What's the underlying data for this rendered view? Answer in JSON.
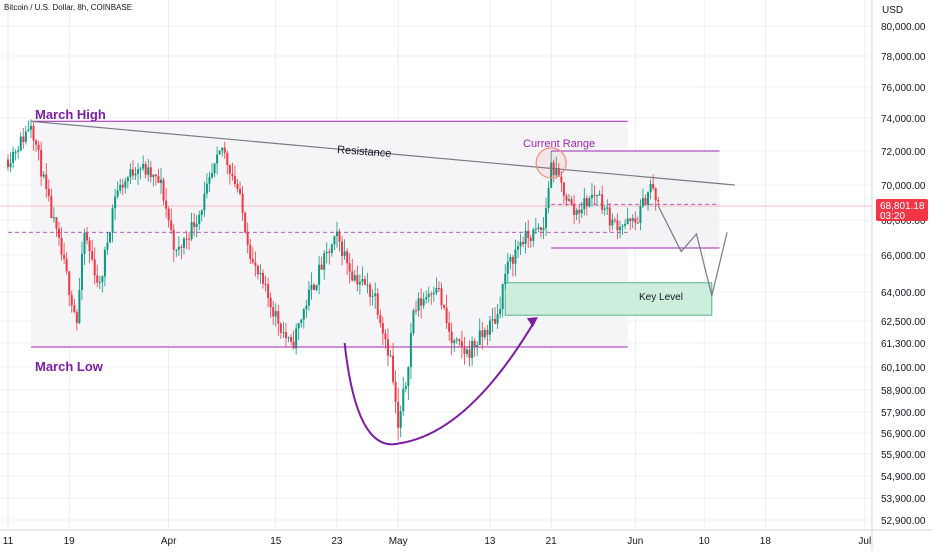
{
  "header": {
    "symbol": "Bitcoin / U.S. Dollar, 8h, COINBASE",
    "currency": "USD"
  },
  "price_badge": {
    "price": "68,801.18",
    "countdown": "03:20",
    "color": "#f23645"
  },
  "colors": {
    "up": "#089981",
    "down": "#f23645",
    "purple": "#9c27b0",
    "dark_purple": "#7b1fa2",
    "grid": "#e0e3eb",
    "resistance": "#787b86",
    "key_level_fill": "#cdeedd",
    "key_level_border": "#57b38a"
  },
  "annotations": {
    "march_high": "March High",
    "march_low": "March Low",
    "resistance": "Resistance",
    "current_range": "Current Range",
    "key_level": "Key Level"
  },
  "chart_data": {
    "type": "candlestick",
    "timeframe": "8h",
    "y_ticks": [
      "80,000.00",
      "78,000.00",
      "76,000.00",
      "74,000.00",
      "72,000.00",
      "70,000.00",
      "68,000.00",
      "66,000.00",
      "64,000.00",
      "62,500.00",
      "61,300.00",
      "60,100.00",
      "58,900.00",
      "57,900.00",
      "56,900.00",
      "55,900.00",
      "54,900.00",
      "53,900.00",
      "52,900.00"
    ],
    "x_ticks": [
      "11",
      "19",
      "Apr",
      "15",
      "23",
      "May",
      "13",
      "21",
      "Jun",
      "10",
      "18",
      "Jul"
    ],
    "levels": {
      "march_high": 73800,
      "march_low": 61100,
      "current_range_high": 72000,
      "current_range_low": 66400,
      "key_level_high": 64500,
      "key_level_low": 62800
    },
    "price_path": [
      [
        "Mar 11",
        71500
      ],
      [
        "Mar 13",
        72800
      ],
      [
        "Mar 14",
        73800
      ],
      [
        "Mar 16",
        69500
      ],
      [
        "Mar 18",
        66000
      ],
      [
        "Mar 20",
        62500
      ],
      [
        "Mar 21",
        67200
      ],
      [
        "Mar 23",
        64200
      ],
      [
        "Mar 25",
        69500
      ],
      [
        "Mar 28",
        71200
      ],
      [
        "Mar 31",
        70000
      ],
      [
        "Apr 2",
        66000
      ],
      [
        "Apr 5",
        68400
      ],
      [
        "Apr 8",
        72200
      ],
      [
        "Apr 10",
        69800
      ],
      [
        "Apr 12",
        65500
      ],
      [
        "Apr 14",
        63700
      ],
      [
        "Apr 17",
        61000
      ],
      [
        "Apr 19",
        63500
      ],
      [
        "Apr 21",
        65400
      ],
      [
        "Apr 23",
        67000
      ],
      [
        "Apr 25",
        65000
      ],
      [
        "Apr 28",
        63800
      ],
      [
        "Apr 30",
        60500
      ],
      [
        "May 1",
        57000
      ],
      [
        "May 2",
        59300
      ],
      [
        "May 3",
        63000
      ],
      [
        "May 6",
        64500
      ],
      [
        "May 8",
        61300
      ],
      [
        "May 10",
        60800
      ],
      [
        "May 12",
        61700
      ],
      [
        "May 14",
        62800
      ],
      [
        "May 15",
        65000
      ],
      [
        "May 17",
        66800
      ],
      [
        "May 20",
        67500
      ],
      [
        "May 21",
        71200
      ],
      [
        "May 24",
        68400
      ],
      [
        "May 27",
        69600
      ],
      [
        "May 29",
        67800
      ],
      [
        "Jun 1",
        67800
      ],
      [
        "Jun 3",
        70000
      ],
      [
        "Jun 4",
        68800
      ]
    ],
    "resistance_line": [
      [
        "Mar 14",
        73800
      ],
      [
        "Jun 14",
        70000
      ]
    ],
    "projection": [
      [
        "Jun 4",
        68800
      ],
      [
        "Jun 7",
        66200
      ],
      [
        "Jun 9",
        67200
      ],
      [
        "Jun 11",
        63800
      ],
      [
        "Jun 13",
        67300
      ]
    ]
  }
}
